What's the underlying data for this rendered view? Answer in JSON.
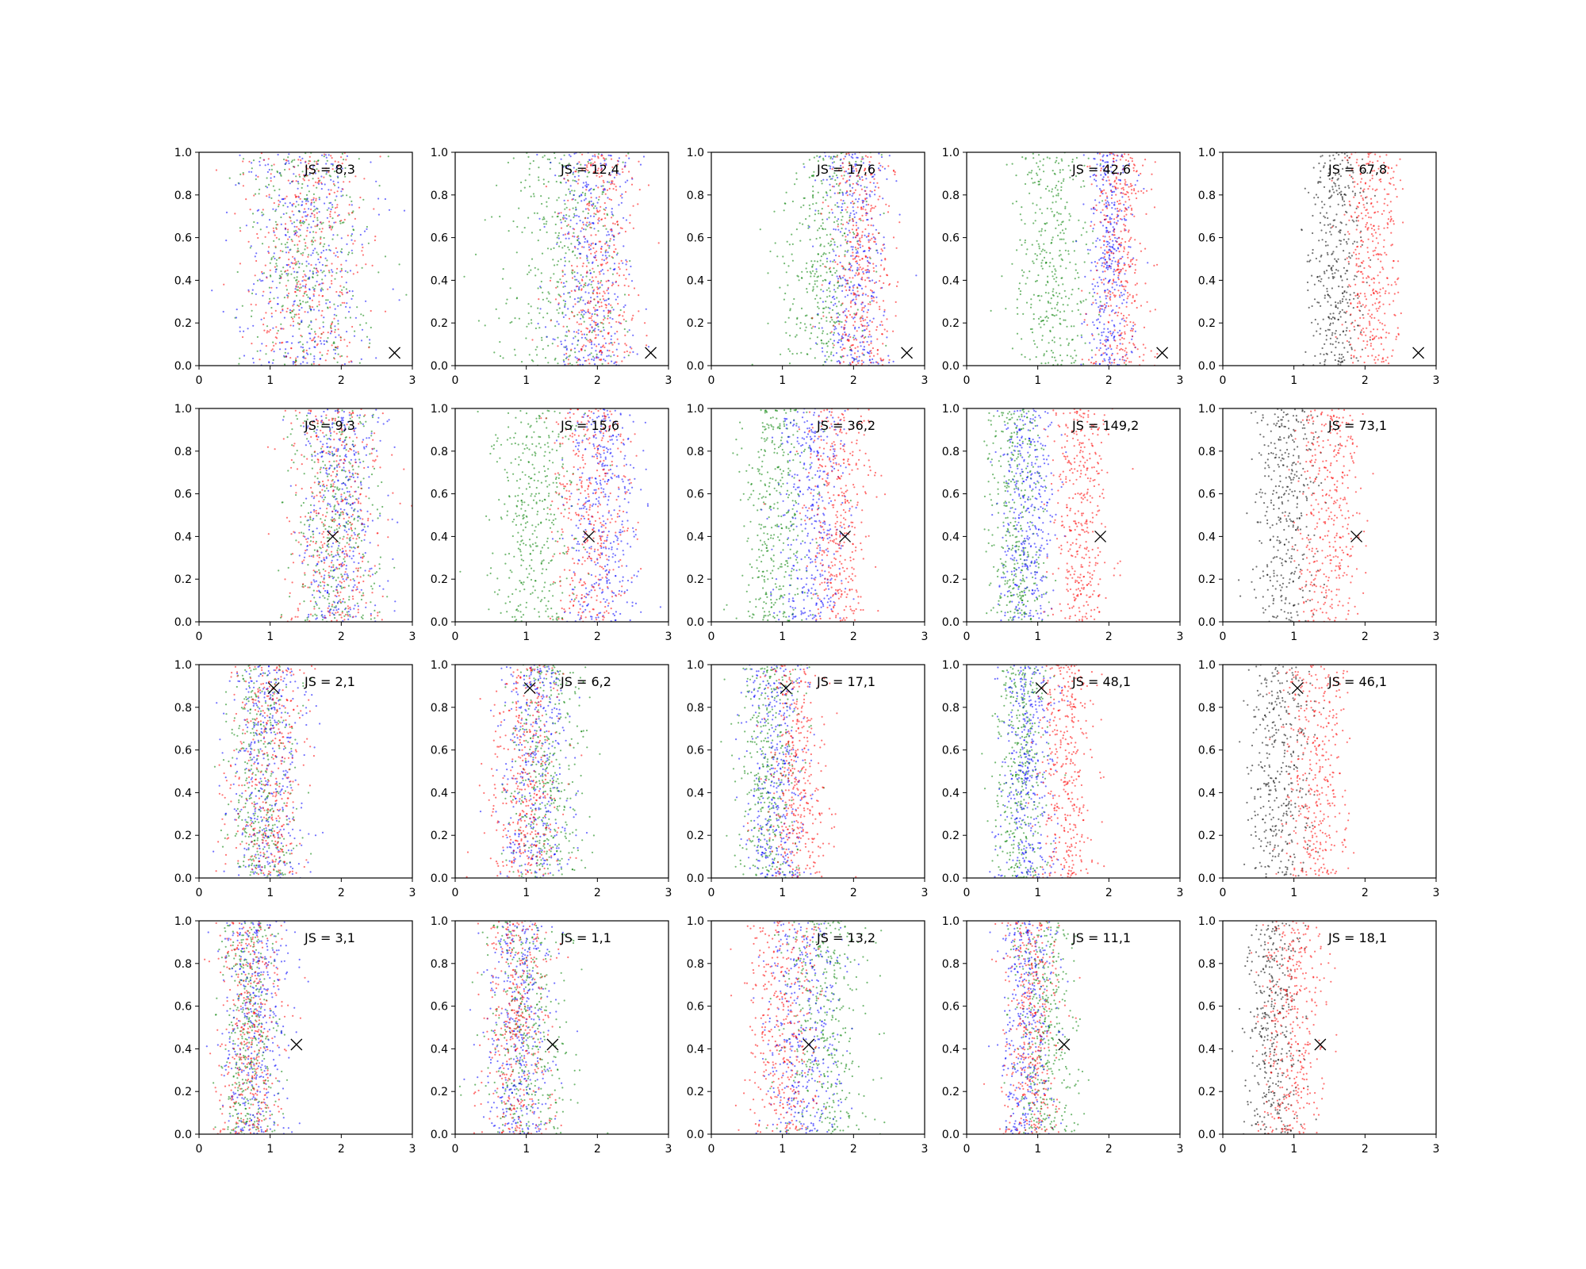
{
  "figure": {
    "rows": 4,
    "cols": 5,
    "colors": {
      "green": "#008000",
      "blue": "#0000ff",
      "red": "#ff0000",
      "black": "#000000"
    }
  },
  "chart_data": [
    {
      "type": "scatter",
      "row": 0,
      "col": 0,
      "annotation": "JS = 8,3",
      "marker": {
        "x": 2.75,
        "y": 0.06
      },
      "xlim": [
        0,
        3
      ],
      "ylim": [
        0,
        1
      ],
      "xticks": [
        "0",
        "1",
        "2",
        "3"
      ],
      "yticks": [
        "0.0",
        "0.2",
        "0.4",
        "0.6",
        "0.8",
        "1.0"
      ],
      "series": [
        {
          "color": "green",
          "center": 1.5,
          "spread": 0.8
        },
        {
          "color": "blue",
          "center": 1.5,
          "spread": 0.8
        },
        {
          "color": "red",
          "center": 1.5,
          "spread": 0.8
        }
      ]
    },
    {
      "type": "scatter",
      "row": 0,
      "col": 1,
      "annotation": "JS = 12,4",
      "marker": {
        "x": 2.75,
        "y": 0.06
      },
      "xlim": [
        0,
        3
      ],
      "ylim": [
        0,
        1
      ],
      "xticks": [
        "0",
        "1",
        "2",
        "3"
      ],
      "yticks": [
        "0.0",
        "0.2",
        "0.4",
        "0.6",
        "0.8",
        "1.0"
      ],
      "series": [
        {
          "color": "green",
          "center": 1.5,
          "spread": 0.75
        },
        {
          "color": "blue",
          "center": 1.9,
          "spread": 0.55
        },
        {
          "color": "red",
          "center": 2.0,
          "spread": 0.5
        }
      ]
    },
    {
      "type": "scatter",
      "row": 0,
      "col": 2,
      "annotation": "JS = 17,6",
      "marker": {
        "x": 2.75,
        "y": 0.06
      },
      "xlim": [
        0,
        3
      ],
      "ylim": [
        0,
        1
      ],
      "xticks": [
        "0",
        "1",
        "2",
        "3"
      ],
      "yticks": [
        "0.0",
        "0.2",
        "0.4",
        "0.6",
        "0.8",
        "1.0"
      ],
      "series": [
        {
          "color": "green",
          "center": 1.6,
          "spread": 0.55
        },
        {
          "color": "blue",
          "center": 2.0,
          "spread": 0.45
        },
        {
          "color": "red",
          "center": 2.1,
          "spread": 0.4
        }
      ]
    },
    {
      "type": "scatter",
      "row": 0,
      "col": 3,
      "annotation": "JS = 42,6",
      "marker": {
        "x": 2.75,
        "y": 0.06
      },
      "xlim": [
        0,
        3
      ],
      "ylim": [
        0,
        1
      ],
      "xticks": [
        "0",
        "1",
        "2",
        "3"
      ],
      "yticks": [
        "0.0",
        "0.2",
        "0.4",
        "0.6",
        "0.8",
        "1.0"
      ],
      "series": [
        {
          "color": "green",
          "center": 1.2,
          "spread": 0.5
        },
        {
          "color": "blue",
          "center": 2.0,
          "spread": 0.3
        },
        {
          "color": "red",
          "center": 2.15,
          "spread": 0.35
        }
      ]
    },
    {
      "type": "scatter",
      "row": 0,
      "col": 4,
      "annotation": "JS = 67,8",
      "marker": {
        "x": 2.75,
        "y": 0.06
      },
      "xlim": [
        0,
        3
      ],
      "ylim": [
        0,
        1
      ],
      "xticks": [
        "0",
        "1",
        "2",
        "3"
      ],
      "yticks": [
        "0.0",
        "0.2",
        "0.4",
        "0.6",
        "0.8",
        "1.0"
      ],
      "series": [
        {
          "color": "black",
          "center": 1.6,
          "spread": 0.35
        },
        {
          "color": "red",
          "center": 2.1,
          "spread": 0.35
        }
      ]
    },
    {
      "type": "scatter",
      "row": 1,
      "col": 0,
      "annotation": "JS = 9,3",
      "marker": {
        "x": 1.88,
        "y": 0.4
      },
      "xlim": [
        0,
        3
      ],
      "ylim": [
        0,
        1
      ],
      "xticks": [
        "0",
        "1",
        "2",
        "3"
      ],
      "yticks": [
        "0.0",
        "0.2",
        "0.4",
        "0.6",
        "0.8",
        "1.0"
      ],
      "series": [
        {
          "color": "green",
          "center": 1.9,
          "spread": 0.55
        },
        {
          "color": "blue",
          "center": 2.0,
          "spread": 0.55
        },
        {
          "color": "red",
          "center": 1.9,
          "spread": 0.6
        }
      ]
    },
    {
      "type": "scatter",
      "row": 1,
      "col": 1,
      "annotation": "JS = 15,6",
      "marker": {
        "x": 1.88,
        "y": 0.4
      },
      "xlim": [
        0,
        3
      ],
      "ylim": [
        0,
        1
      ],
      "xticks": [
        "0",
        "1",
        "2",
        "3"
      ],
      "yticks": [
        "0.0",
        "0.2",
        "0.4",
        "0.6",
        "0.8",
        "1.0"
      ],
      "series": [
        {
          "color": "green",
          "center": 1.1,
          "spread": 0.55
        },
        {
          "color": "blue",
          "center": 2.1,
          "spread": 0.45
        },
        {
          "color": "red",
          "center": 1.9,
          "spread": 0.45
        }
      ]
    },
    {
      "type": "scatter",
      "row": 1,
      "col": 2,
      "annotation": "JS = 36,2",
      "marker": {
        "x": 1.88,
        "y": 0.4
      },
      "xlim": [
        0,
        3
      ],
      "ylim": [
        0,
        1
      ],
      "xticks": [
        "0",
        "1",
        "2",
        "3"
      ],
      "yticks": [
        "0.0",
        "0.2",
        "0.4",
        "0.6",
        "0.8",
        "1.0"
      ],
      "series": [
        {
          "color": "green",
          "center": 0.9,
          "spread": 0.45
        },
        {
          "color": "blue",
          "center": 1.4,
          "spread": 0.45
        },
        {
          "color": "red",
          "center": 1.8,
          "spread": 0.4
        }
      ]
    },
    {
      "type": "scatter",
      "row": 1,
      "col": 3,
      "annotation": "JS = 149,2",
      "marker": {
        "x": 1.88,
        "y": 0.4
      },
      "xlim": [
        0,
        3
      ],
      "ylim": [
        0,
        1
      ],
      "xticks": [
        "0",
        "1",
        "2",
        "3"
      ],
      "yticks": [
        "0.0",
        "0.2",
        "0.4",
        "0.6",
        "0.8",
        "1.0"
      ],
      "series": [
        {
          "color": "green",
          "center": 0.7,
          "spread": 0.35
        },
        {
          "color": "blue",
          "center": 0.85,
          "spread": 0.35
        },
        {
          "color": "red",
          "center": 1.6,
          "spread": 0.35
        }
      ]
    },
    {
      "type": "scatter",
      "row": 1,
      "col": 4,
      "annotation": "JS = 73,1",
      "marker": {
        "x": 1.88,
        "y": 0.4
      },
      "xlim": [
        0,
        3
      ],
      "ylim": [
        0,
        1
      ],
      "xticks": [
        "0",
        "1",
        "2",
        "3"
      ],
      "yticks": [
        "0.0",
        "0.2",
        "0.4",
        "0.6",
        "0.8",
        "1.0"
      ],
      "series": [
        {
          "color": "black",
          "center": 0.9,
          "spread": 0.4
        },
        {
          "color": "red",
          "center": 1.5,
          "spread": 0.4
        }
      ]
    },
    {
      "type": "scatter",
      "row": 2,
      "col": 0,
      "annotation": "JS = 2,1",
      "marker": {
        "x": 1.05,
        "y": 0.89
      },
      "xlim": [
        0,
        3
      ],
      "ylim": [
        0,
        1
      ],
      "xticks": [
        "0",
        "1",
        "2",
        "3"
      ],
      "yticks": [
        "0.0",
        "0.2",
        "0.4",
        "0.6",
        "0.8",
        "1.0"
      ],
      "series": [
        {
          "color": "green",
          "center": 0.9,
          "spread": 0.45
        },
        {
          "color": "blue",
          "center": 0.95,
          "spread": 0.45
        },
        {
          "color": "red",
          "center": 0.95,
          "spread": 0.5
        }
      ]
    },
    {
      "type": "scatter",
      "row": 2,
      "col": 1,
      "annotation": "JS = 6,2",
      "marker": {
        "x": 1.05,
        "y": 0.89
      },
      "xlim": [
        0,
        3
      ],
      "ylim": [
        0,
        1
      ],
      "xticks": [
        "0",
        "1",
        "2",
        "3"
      ],
      "yticks": [
        "0.0",
        "0.2",
        "0.4",
        "0.6",
        "0.8",
        "1.0"
      ],
      "series": [
        {
          "color": "green",
          "center": 1.3,
          "spread": 0.5
        },
        {
          "color": "blue",
          "center": 1.1,
          "spread": 0.45
        },
        {
          "color": "red",
          "center": 1.0,
          "spread": 0.45
        }
      ]
    },
    {
      "type": "scatter",
      "row": 2,
      "col": 2,
      "annotation": "JS = 17,1",
      "marker": {
        "x": 1.05,
        "y": 0.89
      },
      "xlim": [
        0,
        3
      ],
      "ylim": [
        0,
        1
      ],
      "xticks": [
        "0",
        "1",
        "2",
        "3"
      ],
      "yticks": [
        "0.0",
        "0.2",
        "0.4",
        "0.6",
        "0.8",
        "1.0"
      ],
      "series": [
        {
          "color": "green",
          "center": 0.8,
          "spread": 0.4
        },
        {
          "color": "blue",
          "center": 0.9,
          "spread": 0.4
        },
        {
          "color": "red",
          "center": 1.2,
          "spread": 0.4
        }
      ]
    },
    {
      "type": "scatter",
      "row": 2,
      "col": 3,
      "annotation": "JS = 48,1",
      "marker": {
        "x": 1.05,
        "y": 0.89
      },
      "xlim": [
        0,
        3
      ],
      "ylim": [
        0,
        1
      ],
      "xticks": [
        "0",
        "1",
        "2",
        "3"
      ],
      "yticks": [
        "0.0",
        "0.2",
        "0.4",
        "0.6",
        "0.8",
        "1.0"
      ],
      "series": [
        {
          "color": "green",
          "center": 0.75,
          "spread": 0.35
        },
        {
          "color": "blue",
          "center": 0.85,
          "spread": 0.35
        },
        {
          "color": "red",
          "center": 1.4,
          "spread": 0.35
        }
      ]
    },
    {
      "type": "scatter",
      "row": 2,
      "col": 4,
      "annotation": "JS = 46,1",
      "marker": {
        "x": 1.05,
        "y": 0.89
      },
      "xlim": [
        0,
        3
      ],
      "ylim": [
        0,
        1
      ],
      "xticks": [
        "0",
        "1",
        "2",
        "3"
      ],
      "yticks": [
        "0.0",
        "0.2",
        "0.4",
        "0.6",
        "0.8",
        "1.0"
      ],
      "series": [
        {
          "color": "black",
          "center": 0.8,
          "spread": 0.4
        },
        {
          "color": "red",
          "center": 1.3,
          "spread": 0.4
        }
      ]
    },
    {
      "type": "scatter",
      "row": 3,
      "col": 0,
      "annotation": "JS = 3,1",
      "marker": {
        "x": 1.37,
        "y": 0.42
      },
      "xlim": [
        0,
        3
      ],
      "ylim": [
        0,
        1
      ],
      "xticks": [
        "0",
        "1",
        "2",
        "3"
      ],
      "yticks": [
        "0.0",
        "0.2",
        "0.4",
        "0.6",
        "0.8",
        "1.0"
      ],
      "series": [
        {
          "color": "green",
          "center": 0.7,
          "spread": 0.35
        },
        {
          "color": "blue",
          "center": 0.8,
          "spread": 0.45
        },
        {
          "color": "red",
          "center": 0.7,
          "spread": 0.4
        }
      ]
    },
    {
      "type": "scatter",
      "row": 3,
      "col": 1,
      "annotation": "JS = 1,1",
      "marker": {
        "x": 1.37,
        "y": 0.42
      },
      "xlim": [
        0,
        3
      ],
      "ylim": [
        0,
        1
      ],
      "xticks": [
        "0",
        "1",
        "2",
        "3"
      ],
      "yticks": [
        "0.0",
        "0.2",
        "0.4",
        "0.6",
        "0.8",
        "1.0"
      ],
      "series": [
        {
          "color": "green",
          "center": 1.0,
          "spread": 0.55
        },
        {
          "color": "blue",
          "center": 0.9,
          "spread": 0.45
        },
        {
          "color": "red",
          "center": 0.85,
          "spread": 0.45
        }
      ]
    },
    {
      "type": "scatter",
      "row": 3,
      "col": 2,
      "annotation": "JS = 13,2",
      "marker": {
        "x": 1.37,
        "y": 0.42
      },
      "xlim": [
        0,
        3
      ],
      "ylim": [
        0,
        1
      ],
      "xticks": [
        "0",
        "1",
        "2",
        "3"
      ],
      "yticks": [
        "0.0",
        "0.2",
        "0.4",
        "0.6",
        "0.8",
        "1.0"
      ],
      "series": [
        {
          "color": "green",
          "center": 1.6,
          "spread": 0.55
        },
        {
          "color": "blue",
          "center": 1.3,
          "spread": 0.5
        },
        {
          "color": "red",
          "center": 1.0,
          "spread": 0.45
        }
      ]
    },
    {
      "type": "scatter",
      "row": 3,
      "col": 3,
      "annotation": "JS = 11,1",
      "marker": {
        "x": 1.37,
        "y": 0.42
      },
      "xlim": [
        0,
        3
      ],
      "ylim": [
        0,
        1
      ],
      "xticks": [
        "0",
        "1",
        "2",
        "3"
      ],
      "yticks": [
        "0.0",
        "0.2",
        "0.4",
        "0.6",
        "0.8",
        "1.0"
      ],
      "series": [
        {
          "color": "green",
          "center": 1.1,
          "spread": 0.4
        },
        {
          "color": "blue",
          "center": 0.85,
          "spread": 0.35
        },
        {
          "color": "red",
          "center": 0.9,
          "spread": 0.35
        }
      ]
    },
    {
      "type": "scatter",
      "row": 3,
      "col": 4,
      "annotation": "JS = 18,1",
      "marker": {
        "x": 1.37,
        "y": 0.42
      },
      "xlim": [
        0,
        3
      ],
      "ylim": [
        0,
        1
      ],
      "xticks": [
        "0",
        "1",
        "2",
        "3"
      ],
      "yticks": [
        "0.0",
        "0.2",
        "0.4",
        "0.6",
        "0.8",
        "1.0"
      ],
      "series": [
        {
          "color": "black",
          "center": 0.7,
          "spread": 0.35
        },
        {
          "color": "red",
          "center": 1.0,
          "spread": 0.4
        }
      ]
    }
  ]
}
